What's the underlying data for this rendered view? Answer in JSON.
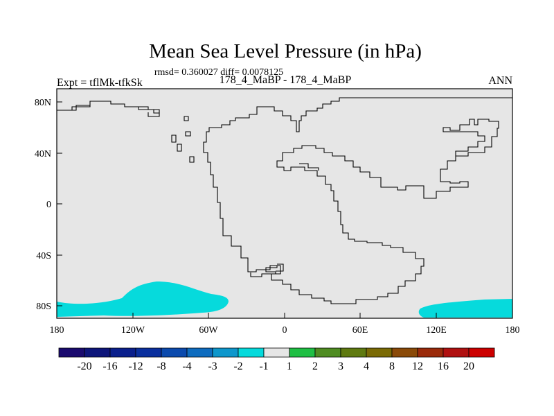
{
  "title": "Mean Sea Level Pressure (in hPa)",
  "stats_line": "rmsd= 0.360027 diff= 0.0078125",
  "left_label": "Expt = tflMk-tfkSk",
  "center_label": "178_4_MaBP - 178_4_MaBP",
  "right_label": "ANN",
  "y_ticks": [
    "80N",
    "40N",
    "0",
    "40S",
    "80S"
  ],
  "x_ticks": [
    "180",
    "120W",
    "60W",
    "0",
    "60E",
    "120E",
    "180"
  ],
  "colorbar": {
    "colors": [
      "#1a0a6e",
      "#0d157a",
      "#0a1f8c",
      "#0a2f9e",
      "#0b4aad",
      "#0e6cbf",
      "#0e97cc",
      "#06dadc",
      "#e6e6e6",
      "#1fbf44",
      "#4f8c22",
      "#5f7a10",
      "#7a6a05",
      "#8a4a08",
      "#9a2a0a",
      "#b01010",
      "#cc0000"
    ],
    "labels": [
      "-20",
      "-16",
      "-12",
      "-8",
      "-4",
      "-3",
      "-2",
      "-1",
      "1",
      "2",
      "3",
      "4",
      "8",
      "12",
      "16",
      "20"
    ]
  },
  "background_color": "#e6e6e6",
  "anomaly_color": "#06dadc"
}
